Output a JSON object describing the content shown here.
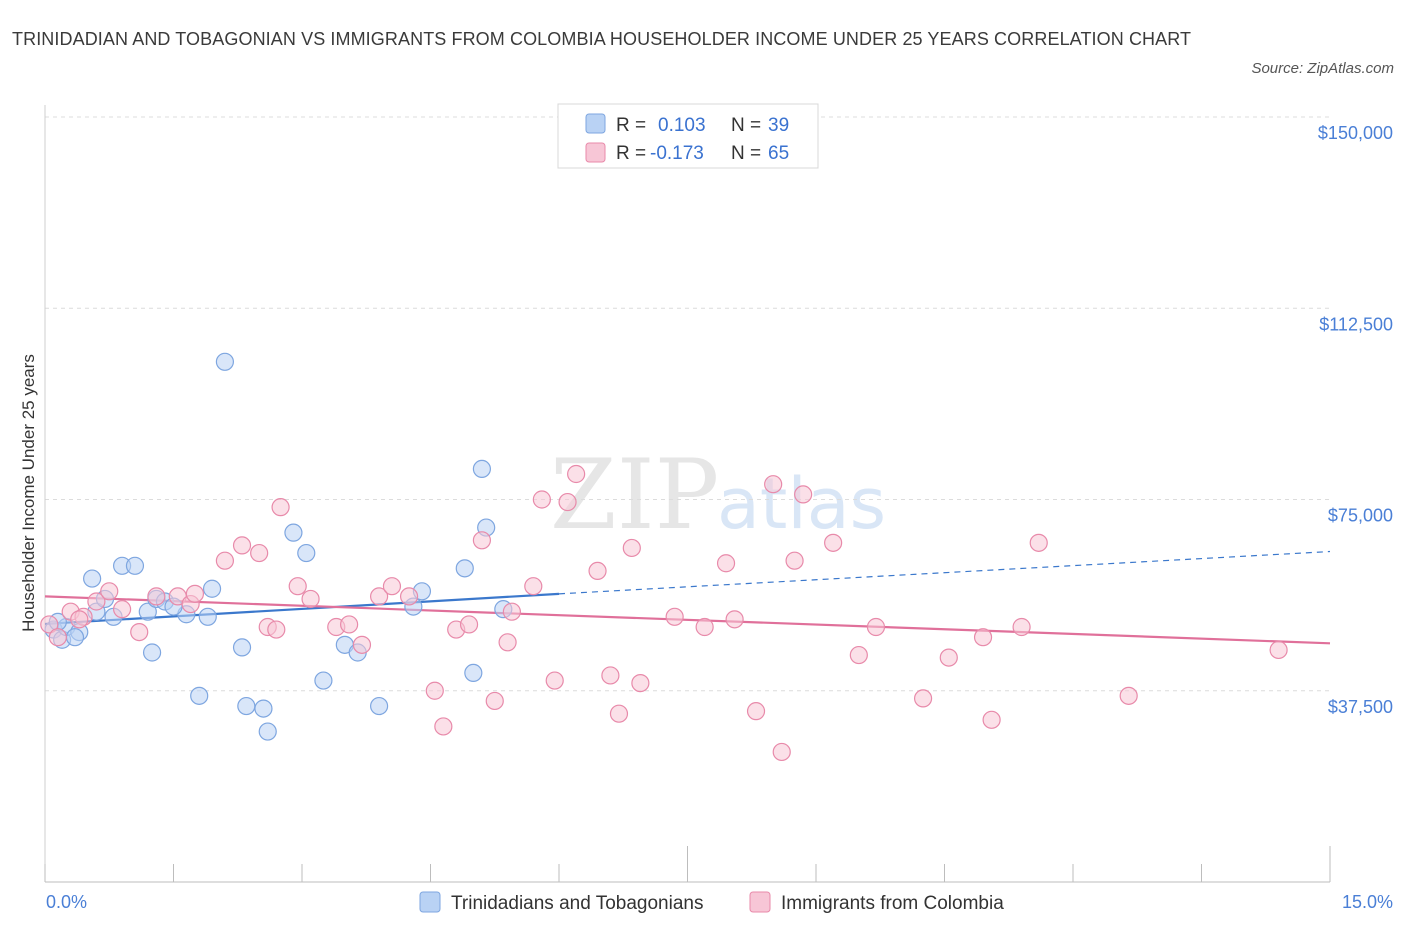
{
  "title": "TRINIDADIAN AND TOBAGONIAN VS IMMIGRANTS FROM COLOMBIA HOUSEHOLDER INCOME UNDER 25 YEARS CORRELATION CHART",
  "source": "Source: ZipAtlas.com",
  "watermark": {
    "zip": "ZIP",
    "atlas": "atlas"
  },
  "colors": {
    "blue_fill": "#b9d2f4",
    "blue_stroke": "#7ea6e0",
    "blue_line": "#3b78cc",
    "pink_fill": "#f7c6d6",
    "pink_stroke": "#e88aaa",
    "pink_line": "#e0709a",
    "grid": "#dcdcdc",
    "tick_label": "#4a7fd6"
  },
  "legend": {
    "rows": [
      {
        "r_label": "R =",
        "r_value": "0.103",
        "n_label": "N =",
        "n_value": "39",
        "series": "blue"
      },
      {
        "r_label": "R =",
        "r_value": "-0.173",
        "n_label": "N =",
        "n_value": "65",
        "series": "pink"
      }
    ]
  },
  "chart_data": {
    "type": "scatter",
    "title": "TRINIDADIAN AND TOBAGONIAN VS IMMIGRANTS FROM COLOMBIA HOUSEHOLDER INCOME UNDER 25 YEARS CORRELATION CHART",
    "xlabel": "",
    "ylabel": "Householder Income Under 25 years",
    "xlim": [
      0,
      15
    ],
    "ylim": [
      0,
      150000
    ],
    "x_tick_labels": [
      "0.0%",
      "15.0%"
    ],
    "y_ticks": [
      37500,
      75000,
      112500,
      150000
    ],
    "y_tick_labels": [
      "$37,500",
      "$75,000",
      "$112,500",
      "$150,000"
    ],
    "grid": "horizontal dashed",
    "legend_position": "top-center",
    "series": [
      {
        "name": "Trinidadians and Tobagonians",
        "color": "blue",
        "trend": {
          "x_start": 0,
          "y_start": 50600,
          "x_solid_end": 6.0,
          "y_solid_end": 56500,
          "x_end": 15,
          "y_end": 64800
        },
        "points": [
          [
            0.1,
            49500
          ],
          [
            0.2,
            47500
          ],
          [
            0.25,
            50000
          ],
          [
            0.4,
            49000
          ],
          [
            0.55,
            59500
          ],
          [
            0.6,
            53000
          ],
          [
            0.8,
            52000
          ],
          [
            0.9,
            62000
          ],
          [
            1.05,
            62000
          ],
          [
            1.2,
            53000
          ],
          [
            1.25,
            45000
          ],
          [
            1.3,
            55500
          ],
          [
            1.65,
            52500
          ],
          [
            1.8,
            36500
          ],
          [
            1.9,
            52000
          ],
          [
            1.95,
            57500
          ],
          [
            2.1,
            102000
          ],
          [
            2.3,
            46000
          ],
          [
            2.35,
            34500
          ],
          [
            2.55,
            34000
          ],
          [
            2.6,
            29500
          ],
          [
            2.9,
            68500
          ],
          [
            3.05,
            64500
          ],
          [
            3.25,
            39500
          ],
          [
            3.5,
            46500
          ],
          [
            3.65,
            45000
          ],
          [
            3.9,
            34500
          ],
          [
            4.3,
            54000
          ],
          [
            4.4,
            57000
          ],
          [
            4.9,
            61500
          ],
          [
            5.0,
            41000
          ],
          [
            5.1,
            81000
          ],
          [
            5.15,
            69500
          ],
          [
            5.35,
            53500
          ],
          [
            0.15,
            51000
          ],
          [
            0.35,
            48000
          ],
          [
            0.7,
            55500
          ],
          [
            1.4,
            55000
          ],
          [
            1.5,
            54000
          ]
        ]
      },
      {
        "name": "Immigrants from Colombia",
        "color": "pink",
        "trend": {
          "x_start": 0,
          "y_start": 56000,
          "x_end": 15,
          "y_end": 46800
        },
        "points": [
          [
            0.05,
            50500
          ],
          [
            0.15,
            48000
          ],
          [
            0.3,
            53000
          ],
          [
            0.45,
            52000
          ],
          [
            0.6,
            55000
          ],
          [
            0.75,
            57000
          ],
          [
            0.9,
            53500
          ],
          [
            1.1,
            49000
          ],
          [
            1.3,
            56000
          ],
          [
            1.55,
            56000
          ],
          [
            1.7,
            54500
          ],
          [
            1.75,
            56500
          ],
          [
            2.1,
            63000
          ],
          [
            2.3,
            66000
          ],
          [
            2.5,
            64500
          ],
          [
            2.6,
            50000
          ],
          [
            2.7,
            49500
          ],
          [
            2.75,
            73500
          ],
          [
            2.95,
            58000
          ],
          [
            3.1,
            55500
          ],
          [
            3.4,
            50000
          ],
          [
            3.55,
            50500
          ],
          [
            3.7,
            46500
          ],
          [
            3.9,
            56000
          ],
          [
            4.05,
            58000
          ],
          [
            4.25,
            56000
          ],
          [
            4.55,
            37500
          ],
          [
            4.65,
            30500
          ],
          [
            4.8,
            49500
          ],
          [
            4.95,
            50500
          ],
          [
            5.1,
            67000
          ],
          [
            5.25,
            35500
          ],
          [
            5.4,
            47000
          ],
          [
            5.45,
            53000
          ],
          [
            5.7,
            58000
          ],
          [
            5.8,
            75000
          ],
          [
            5.95,
            39500
          ],
          [
            6.1,
            74500
          ],
          [
            6.2,
            80000
          ],
          [
            6.45,
            61000
          ],
          [
            6.6,
            40500
          ],
          [
            6.7,
            33000
          ],
          [
            6.85,
            65500
          ],
          [
            6.95,
            39000
          ],
          [
            7.35,
            52000
          ],
          [
            7.7,
            50000
          ],
          [
            7.95,
            62500
          ],
          [
            8.05,
            51500
          ],
          [
            8.3,
            33500
          ],
          [
            8.5,
            78000
          ],
          [
            8.6,
            25500
          ],
          [
            8.75,
            63000
          ],
          [
            8.85,
            76000
          ],
          [
            9.2,
            66500
          ],
          [
            9.5,
            44500
          ],
          [
            9.7,
            50000
          ],
          [
            10.25,
            36000
          ],
          [
            10.55,
            44000
          ],
          [
            10.95,
            48000
          ],
          [
            11.05,
            31800
          ],
          [
            11.4,
            50000
          ],
          [
            11.6,
            66500
          ],
          [
            12.65,
            36500
          ],
          [
            14.4,
            45500
          ],
          [
            0.4,
            51500
          ]
        ]
      }
    ]
  }
}
